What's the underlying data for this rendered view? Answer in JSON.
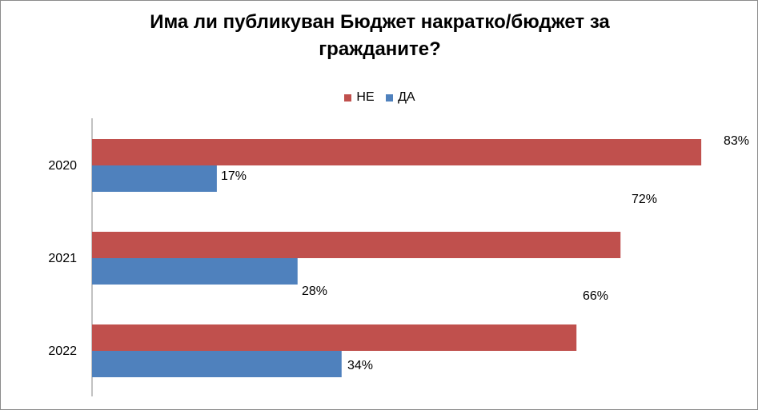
{
  "chart_data": {
    "type": "bar",
    "orientation": "horizontal",
    "title_lines": [
      "Има ли публикуван Бюджет накратко/бюджет за",
      "гражданите?"
    ],
    "categories": [
      "2020",
      "2021",
      "2022"
    ],
    "series": [
      {
        "name": "НЕ",
        "color": "#c0504d",
        "values": [
          83,
          72,
          66
        ],
        "labels": [
          "83%",
          "72%",
          "66%"
        ]
      },
      {
        "name": "ДА",
        "color": "#4f81bd",
        "values": [
          17,
          28,
          34
        ],
        "labels": [
          "17%",
          "28%",
          "34%"
        ]
      }
    ],
    "xlim": [
      0,
      100
    ],
    "grid": false,
    "legend_position": "top"
  }
}
